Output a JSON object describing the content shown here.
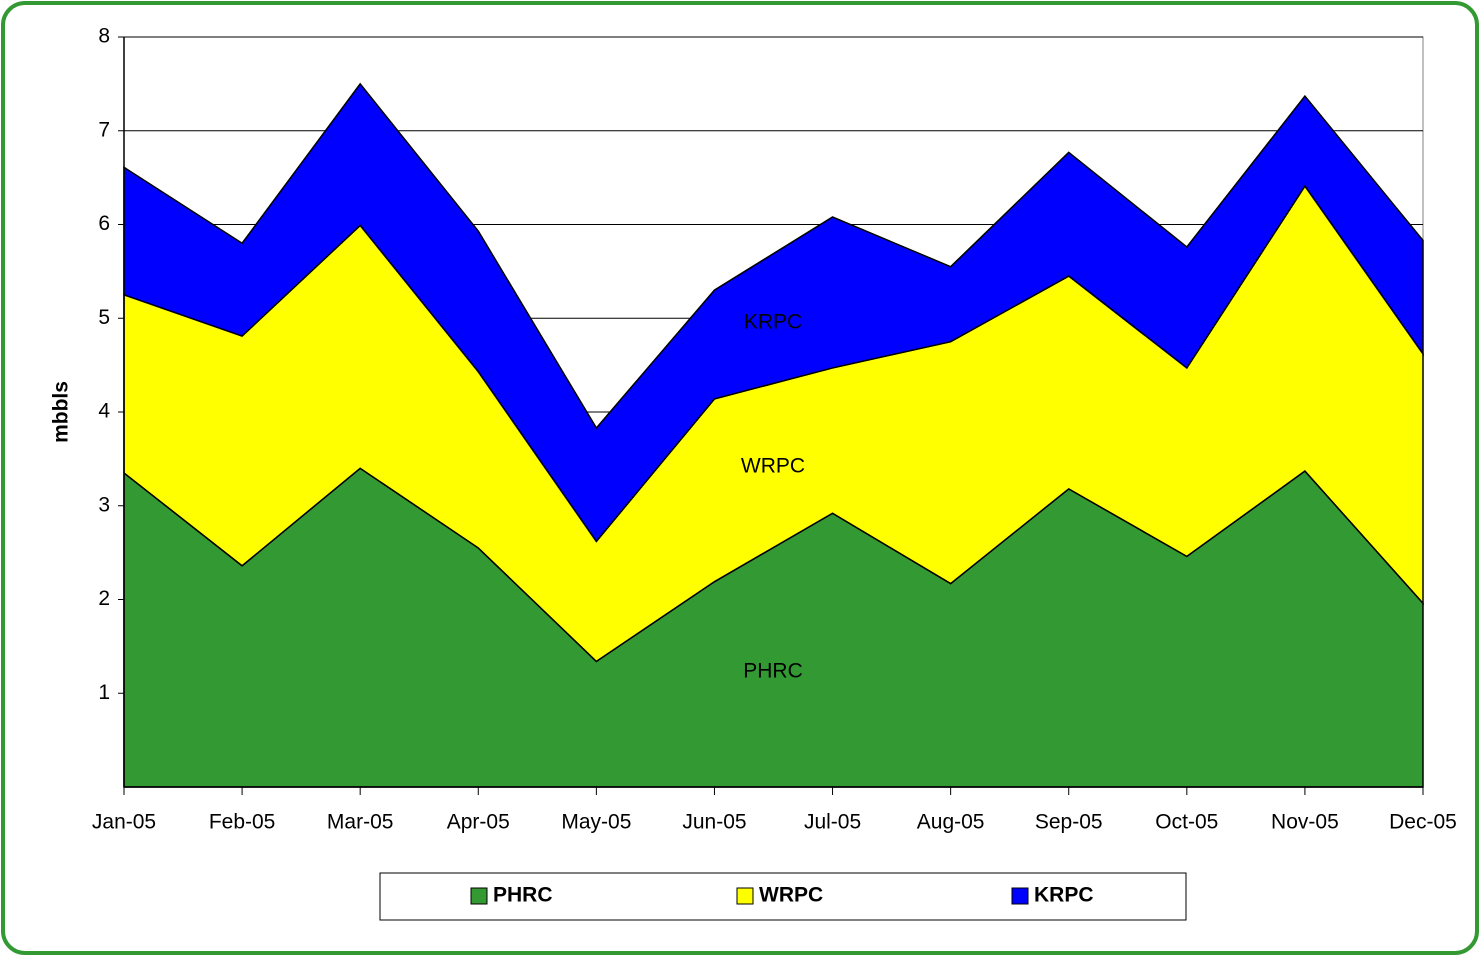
{
  "chart_data": {
    "type": "stacked_area",
    "y_label": "mbbls",
    "categories": [
      "Jan-05",
      "Feb-05",
      "Mar-05",
      "Apr-05",
      "May-05",
      "Jun-05",
      "Jul-05",
      "Aug-05",
      "Sep-05",
      "Oct-05",
      "Nov-05",
      "Dec-05"
    ],
    "series": [
      {
        "name": "PHRC",
        "color": "#339933",
        "values": [
          3.35,
          2.36,
          3.4,
          2.55,
          1.34,
          2.19,
          2.92,
          2.17,
          3.18,
          2.46,
          3.37,
          1.96
        ]
      },
      {
        "name": "WRPC",
        "color": "#ffff00",
        "values": [
          1.9,
          2.45,
          2.59,
          1.88,
          1.28,
          1.95,
          1.55,
          2.58,
          2.27,
          2.01,
          3.04,
          2.66
        ]
      },
      {
        "name": "KRPC",
        "color": "#0000ff",
        "values": [
          1.36,
          0.99,
          1.51,
          1.5,
          1.21,
          1.16,
          1.61,
          0.8,
          1.32,
          1.29,
          0.96,
          1.21
        ]
      }
    ],
    "ylim": [
      0,
      8
    ],
    "yticks": [
      1,
      2,
      3,
      4,
      5,
      6,
      7,
      8
    ],
    "grid": true,
    "legend": "bottom"
  }
}
